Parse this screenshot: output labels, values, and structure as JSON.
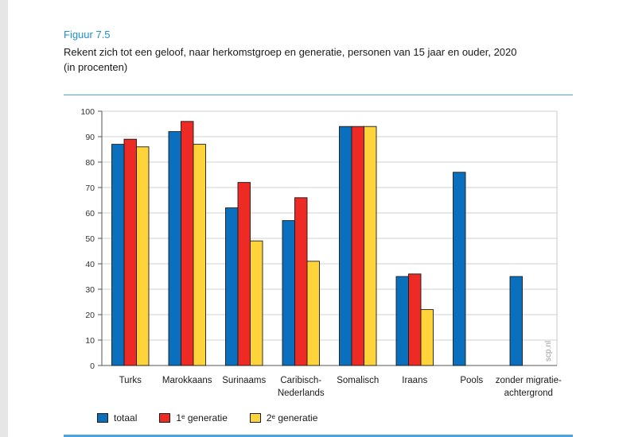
{
  "figure_label": "Figuur 7.5",
  "title_line1": "Rekent zich tot een geloof, naar herkomstgroep en generatie, personen van 15 jaar en ouder, 2020",
  "title_line2": "(in procenten)",
  "watermark": "scp.nl",
  "colors": {
    "accent": "#1f8fd0",
    "totaal": "#0a6fbd",
    "gen1": "#ee2a24",
    "gen2": "#ffd43b"
  },
  "chart_data": {
    "type": "bar",
    "title": "Rekent zich tot een geloof, naar herkomstgroep en generatie, personen van 15 jaar en ouder, 2020",
    "subtitle": "(in procenten)",
    "categories": [
      [
        "Turks"
      ],
      [
        "Marokkaans"
      ],
      [
        "Surinaams"
      ],
      [
        "Caribisch-",
        "Nederlands"
      ],
      [
        "Somalisch"
      ],
      [
        "Iraans"
      ],
      [
        "Pools"
      ],
      [
        "zonder migratie-",
        "achtergrond"
      ]
    ],
    "series": [
      {
        "name": "totaal",
        "values": [
          87,
          92,
          62,
          57,
          94,
          35,
          76,
          35
        ]
      },
      {
        "name": "1ᵉ generatie",
        "values": [
          89,
          96,
          72,
          66,
          94,
          36,
          null,
          null
        ]
      },
      {
        "name": "2ᵉ generatie",
        "values": [
          86,
          87,
          49,
          41,
          94,
          22,
          null,
          null
        ]
      }
    ],
    "ylim": [
      0,
      100
    ],
    "yticks": [
      0,
      10,
      20,
      30,
      40,
      50,
      60,
      70,
      80,
      90,
      100
    ],
    "grid": true,
    "legend": "bottom"
  }
}
